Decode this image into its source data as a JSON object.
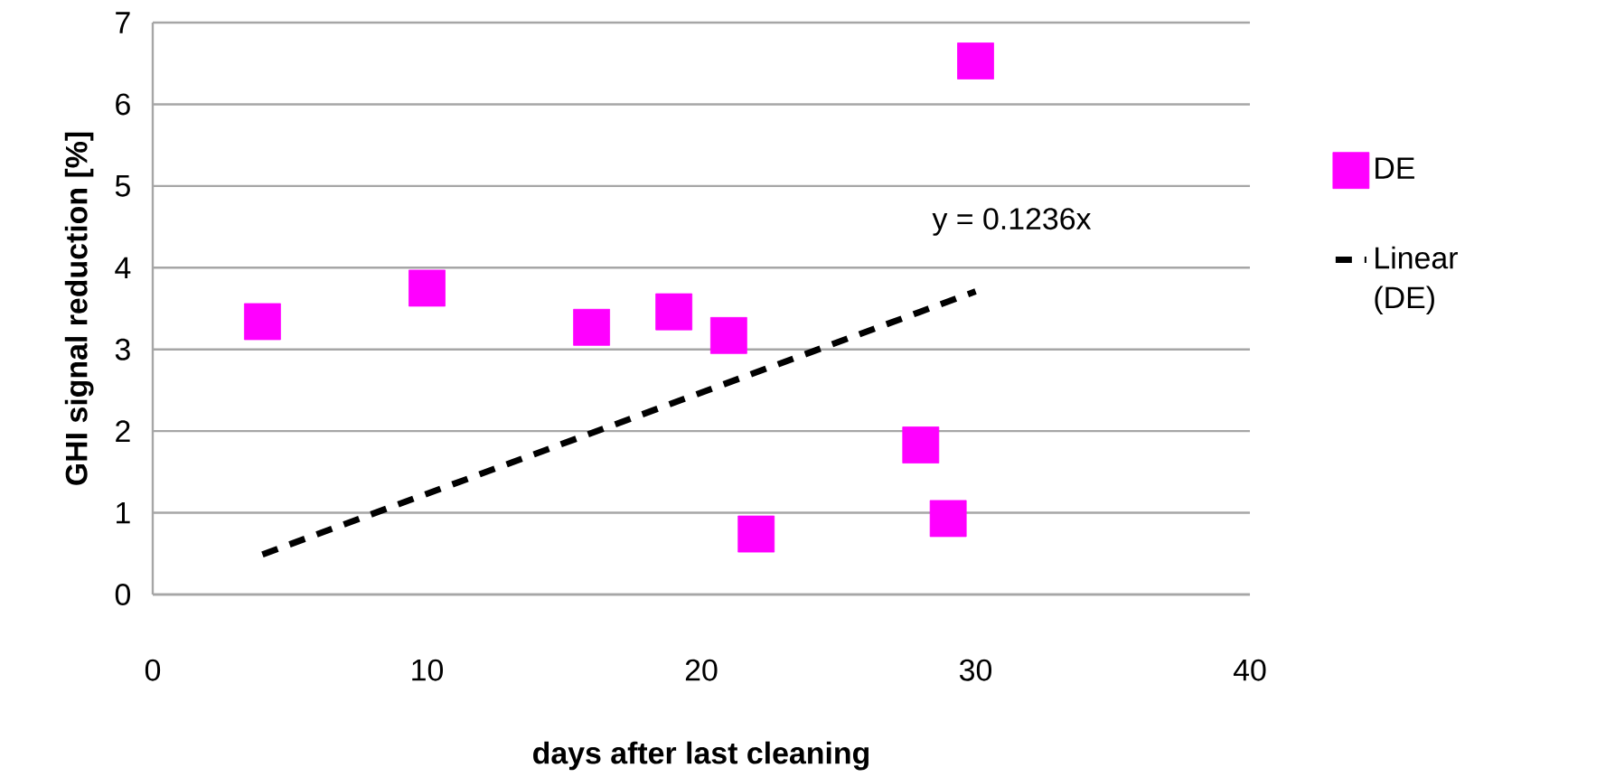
{
  "chart_data": {
    "type": "scatter",
    "xlabel": "days after last cleaning",
    "ylabel": "GHI signal reduction [%]",
    "xlim": [
      0,
      40
    ],
    "xticks": [
      0,
      10,
      20,
      30,
      40
    ],
    "ylim": [
      0,
      7
    ],
    "yticks": [
      0,
      1,
      2,
      3,
      4,
      5,
      6,
      7
    ],
    "grid": "y",
    "legend": "right",
    "marker": "square",
    "annotations": [
      "y = 0.1236x"
    ],
    "series": [
      {
        "name": "DE",
        "color": "#ff00ff",
        "x": [
          4,
          10,
          16,
          19,
          21,
          22,
          28,
          29,
          30
        ],
        "values": [
          3.34,
          3.75,
          3.27,
          3.46,
          3.17,
          0.74,
          1.83,
          0.93,
          6.53
        ]
      },
      {
        "name": "Linear (DE)",
        "type": "line",
        "color": "#000000",
        "line_style": "dashed",
        "marker": "none",
        "x": [
          4,
          30
        ],
        "values": [
          0.49,
          3.71
        ]
      }
    ]
  }
}
